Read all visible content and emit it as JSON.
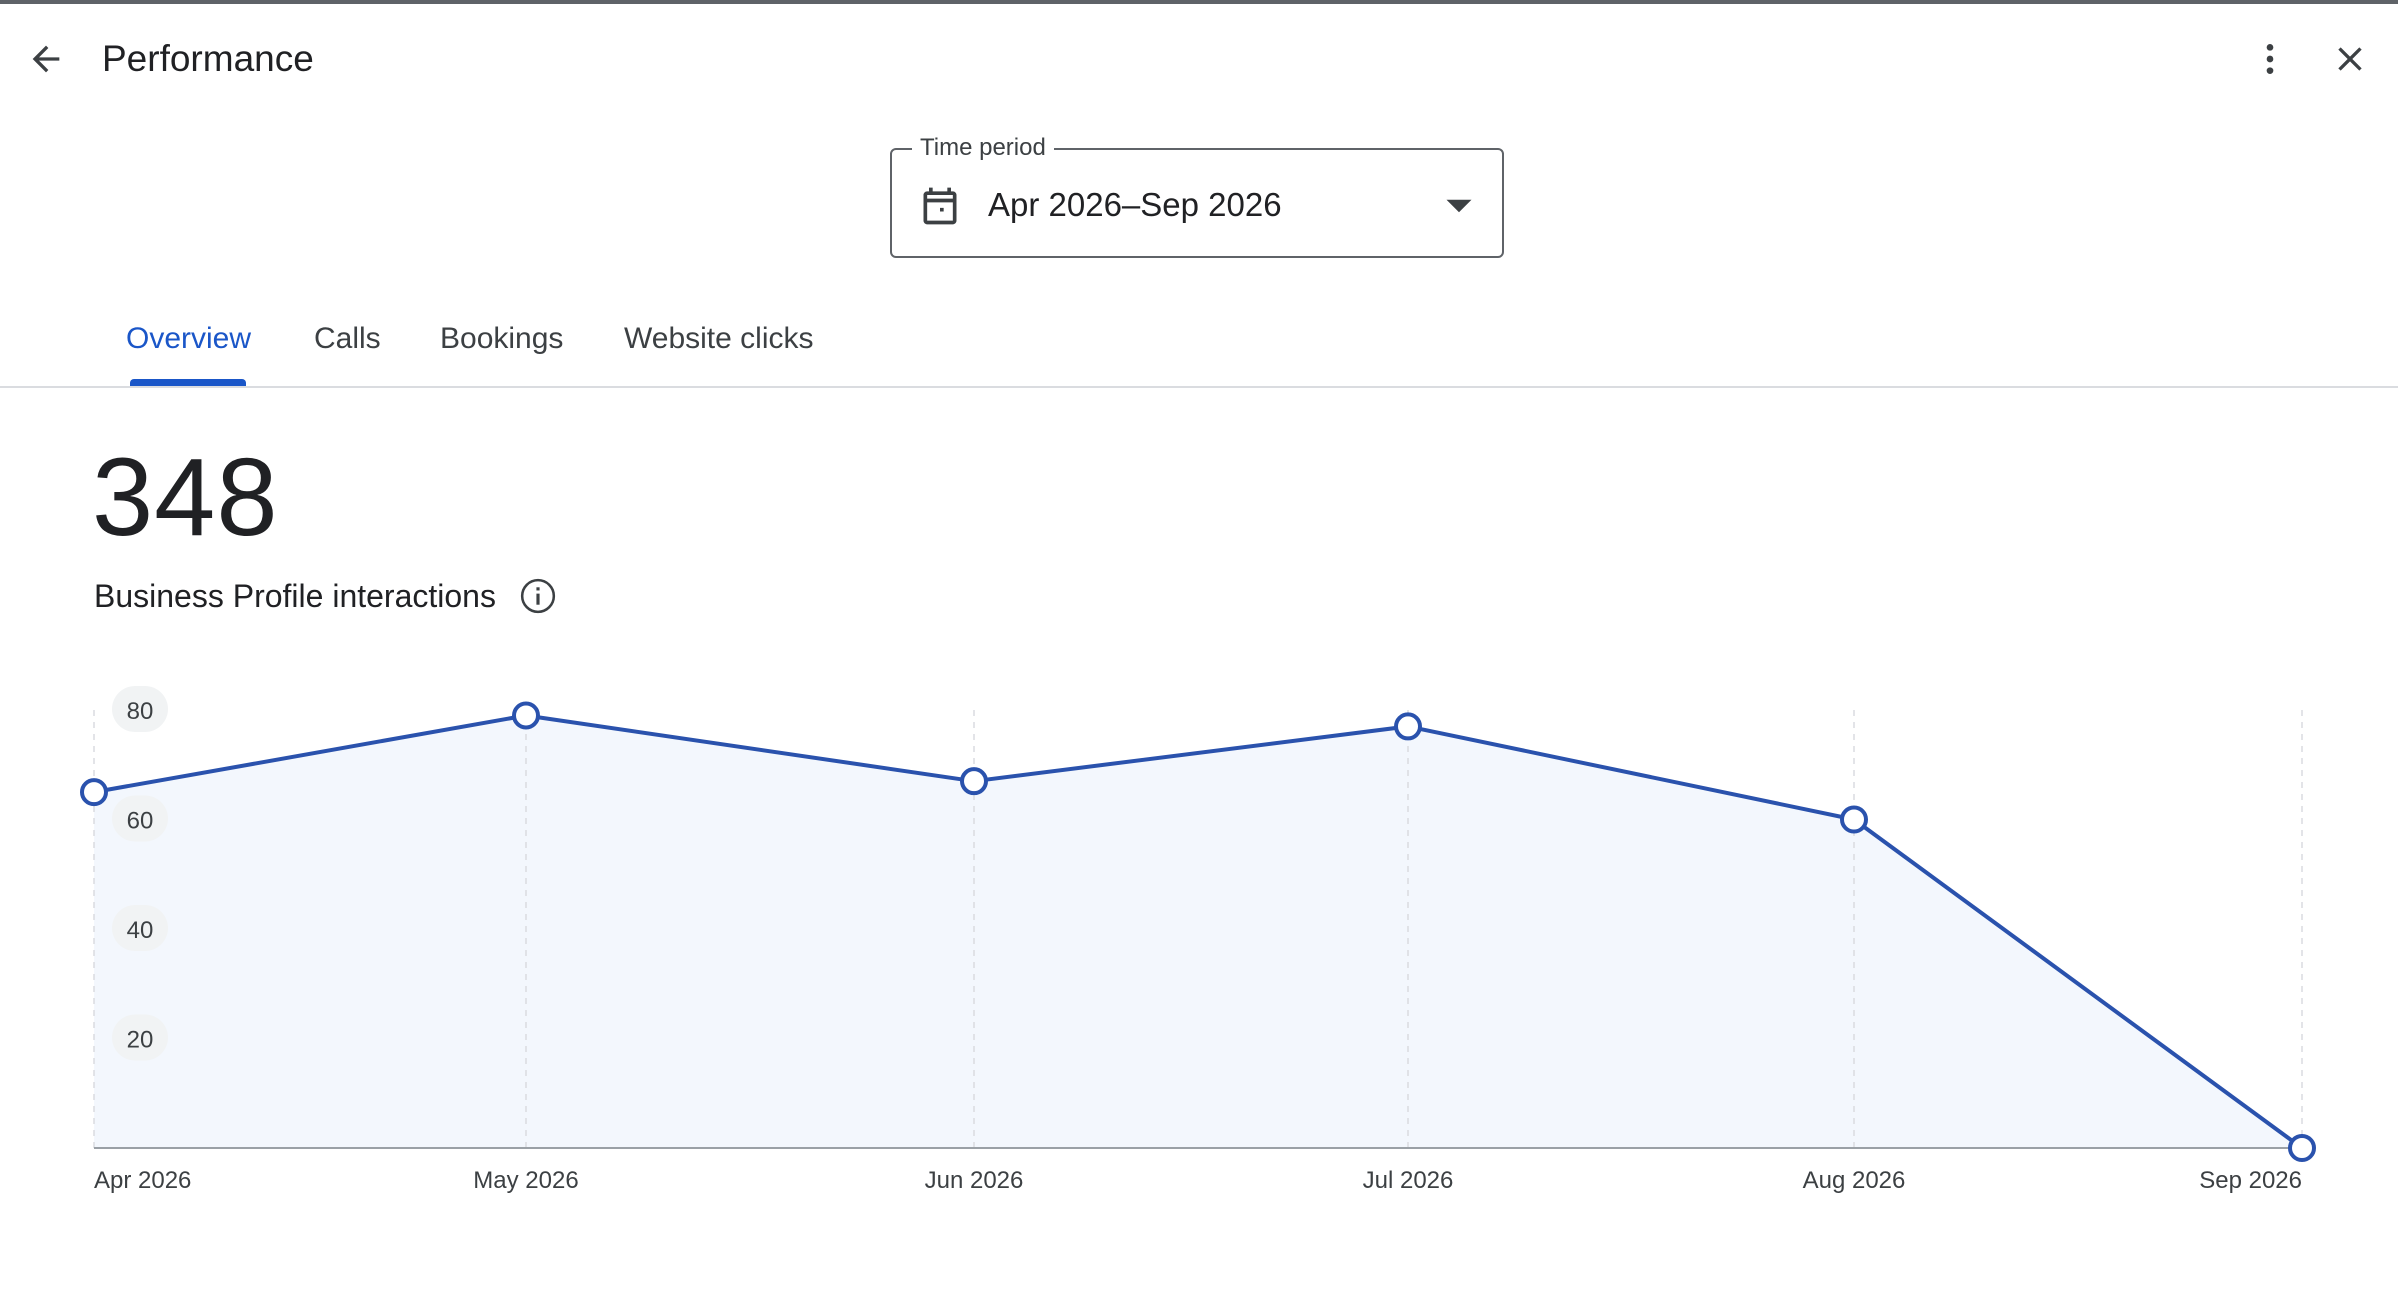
{
  "header": {
    "title": "Performance",
    "back_icon": "arrow-back-icon",
    "more_icon": "more-vert-icon",
    "close_icon": "close-icon"
  },
  "time_period": {
    "label": "Time period",
    "value": "Apr 2026–Sep 2026",
    "icon": "calendar-icon"
  },
  "tabs": [
    {
      "label": "Overview",
      "active": true
    },
    {
      "label": "Calls",
      "active": false
    },
    {
      "label": "Bookings",
      "active": false
    },
    {
      "label": "Website clicks",
      "active": false
    }
  ],
  "summary": {
    "total": "348",
    "label": "Business Profile interactions",
    "info_icon": "info-icon"
  },
  "colors": {
    "accent": "#1a56c8",
    "line": "#2a52ad",
    "fill": "#f3f7fd"
  },
  "chart_data": {
    "type": "area",
    "categories": [
      "Apr 2026",
      "May 2026",
      "Jun 2026",
      "Jul 2026",
      "Aug 2026",
      "Sep 2026"
    ],
    "series": [
      {
        "values": [
          65,
          79,
          67,
          77,
          60,
          0
        ]
      }
    ],
    "yticks": [
      "80",
      "60",
      "40",
      "20"
    ],
    "ylim": [
      0,
      80
    ],
    "grid": "vertical dashed",
    "markers": "hollow circles"
  }
}
